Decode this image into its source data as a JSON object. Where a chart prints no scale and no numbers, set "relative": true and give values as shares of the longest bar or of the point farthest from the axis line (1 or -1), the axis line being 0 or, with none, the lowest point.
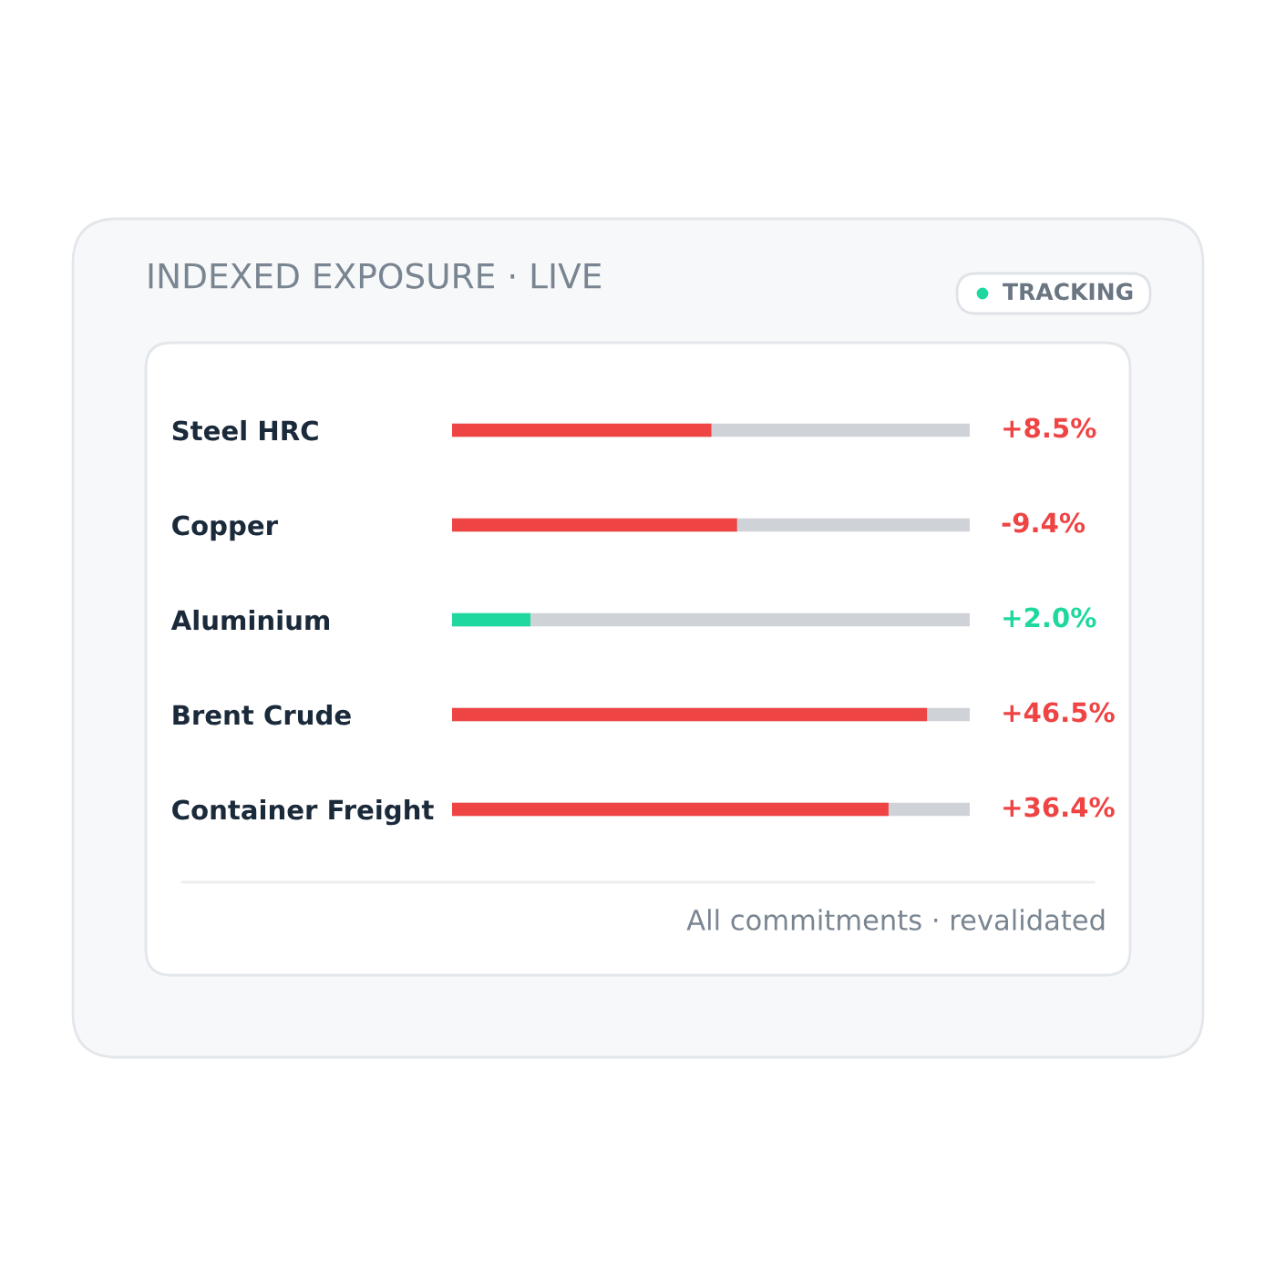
{
  "chart_data": {
    "type": "bar",
    "orientation": "horizontal",
    "relative": true,
    "title": "INDEXED EXPOSURE · LIVE",
    "categories": [
      "Steel HRC",
      "Copper",
      "Aluminium",
      "Brent Crude",
      "Container Freight"
    ],
    "values": [
      0.546,
      0.6,
      0.165,
      1,
      0.919
    ],
    "colors": [
      "#ef4444",
      "#ef4444",
      "#1fd8a0",
      "#ef4444",
      "#ef4444"
    ],
    "annotations": [
      "TRACKING",
      "All commitments · revalidated",
      "+8.5%",
      "-9.4%",
      "+2.0%",
      "+46.5%",
      "+36.4%"
    ]
  }
}
